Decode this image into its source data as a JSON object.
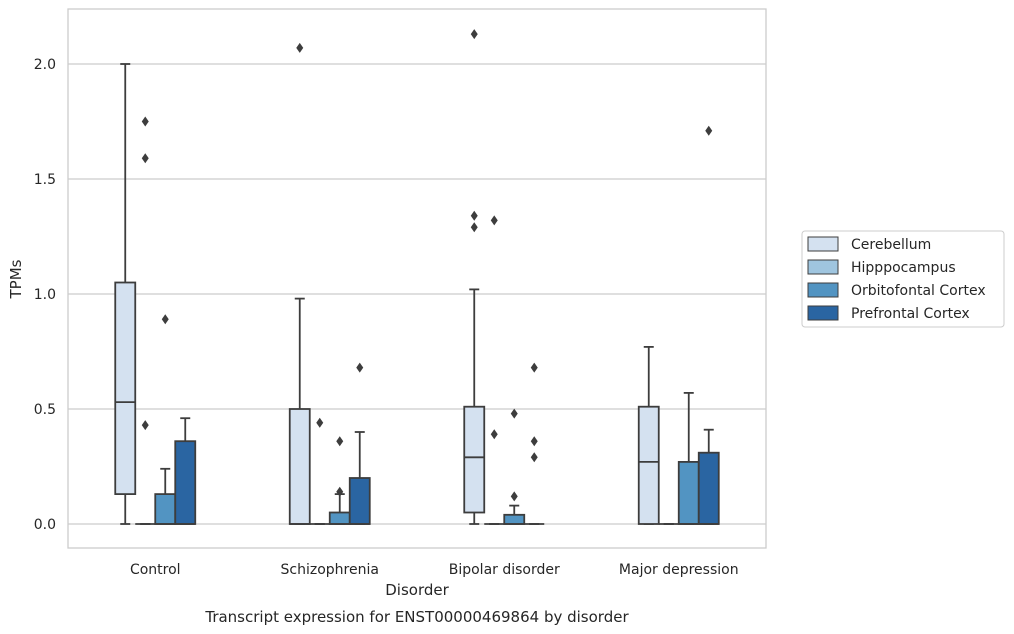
{
  "chart_data": {
    "type": "boxplot",
    "title": "",
    "caption": "Transcript expression for ENST00000469864 by disorder",
    "xlabel": "Disorder",
    "ylabel": "TPMs",
    "ylim": [
      -0.1,
      2.25
    ],
    "yticks": [
      0.0,
      0.5,
      1.0,
      1.5,
      2.0
    ],
    "ytick_labels": [
      "0.0",
      "0.5",
      "1.0",
      "1.5",
      "2.0"
    ],
    "categories": [
      "Control",
      "Schizophrenia",
      "Bipolar disorder",
      "Major depression"
    ],
    "grid": "horizontal",
    "legend_position": "right",
    "series": [
      {
        "name": "Cerebellum",
        "color": "#d4e1f0",
        "boxes": [
          {
            "whislo": 0.0,
            "q1": 0.13,
            "med": 0.53,
            "q3": 1.05,
            "whishi": 2.0,
            "fliers": []
          },
          {
            "whislo": 0.0,
            "q1": 0.0,
            "med": 0.0,
            "q3": 0.5,
            "whishi": 0.98,
            "fliers": [
              2.07
            ]
          },
          {
            "whislo": 0.0,
            "q1": 0.05,
            "med": 0.29,
            "q3": 0.51,
            "whishi": 1.02,
            "fliers": [
              1.29,
              1.34,
              2.13
            ]
          },
          {
            "whislo": 0.0,
            "q1": 0.0,
            "med": 0.27,
            "q3": 0.51,
            "whishi": 0.77,
            "fliers": []
          }
        ]
      },
      {
        "name": "Hipppocampus",
        "color": "#9fc5df",
        "boxes": [
          {
            "whislo": 0.0,
            "q1": 0.0,
            "med": 0.0,
            "q3": 0.0,
            "whishi": 0.0,
            "fliers": [
              0.43,
              1.59,
              1.75
            ]
          },
          {
            "whislo": 0.0,
            "q1": 0.0,
            "med": 0.0,
            "q3": 0.0,
            "whishi": 0.0,
            "fliers": [
              0.44
            ]
          },
          {
            "whislo": 0.0,
            "q1": 0.0,
            "med": 0.0,
            "q3": 0.0,
            "whishi": 0.0,
            "fliers": [
              0.39,
              1.32
            ]
          },
          {
            "whislo": 0.0,
            "q1": 0.0,
            "med": 0.0,
            "q3": 0.0,
            "whishi": 0.0,
            "fliers": []
          }
        ]
      },
      {
        "name": "Orbitofontal Cortex",
        "color": "#5294c2",
        "boxes": [
          {
            "whislo": 0.0,
            "q1": 0.0,
            "med": 0.0,
            "q3": 0.13,
            "whishi": 0.24,
            "fliers": [
              0.89
            ]
          },
          {
            "whislo": 0.0,
            "q1": 0.0,
            "med": 0.0,
            "q3": 0.05,
            "whishi": 0.13,
            "fliers": [
              0.14,
              0.36
            ]
          },
          {
            "whislo": 0.0,
            "q1": 0.0,
            "med": 0.0,
            "q3": 0.04,
            "whishi": 0.08,
            "fliers": [
              0.12,
              0.48
            ]
          },
          {
            "whislo": 0.0,
            "q1": 0.0,
            "med": 0.0,
            "q3": 0.27,
            "whishi": 0.57,
            "fliers": []
          }
        ]
      },
      {
        "name": "Prefrontal Cortex",
        "color": "#2a65a2",
        "boxes": [
          {
            "whislo": 0.0,
            "q1": 0.0,
            "med": 0.0,
            "q3": 0.36,
            "whishi": 0.46,
            "fliers": []
          },
          {
            "whislo": 0.0,
            "q1": 0.0,
            "med": 0.0,
            "q3": 0.2,
            "whishi": 0.4,
            "fliers": [
              0.68
            ]
          },
          {
            "whislo": 0.0,
            "q1": 0.0,
            "med": 0.0,
            "q3": 0.0,
            "whishi": 0.0,
            "fliers": [
              0.29,
              0.36,
              0.68
            ]
          },
          {
            "whislo": 0.0,
            "q1": 0.0,
            "med": 0.0,
            "q3": 0.31,
            "whishi": 0.41,
            "fliers": [
              1.71
            ]
          }
        ]
      }
    ]
  }
}
